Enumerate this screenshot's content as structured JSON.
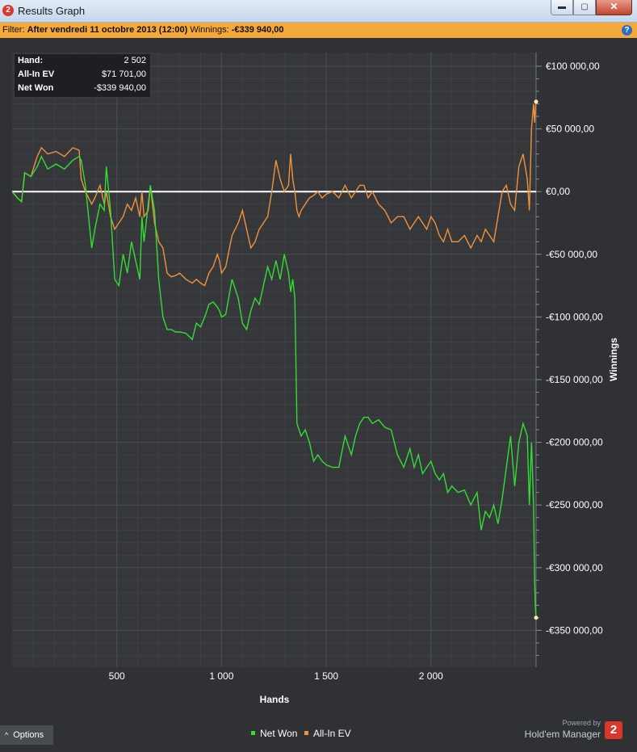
{
  "window": {
    "title": "Results Graph",
    "icon": "hm2-icon",
    "min": "▬",
    "max": "▢",
    "close": "✕"
  },
  "filter": {
    "prefix": "Filter:",
    "text": "After vendredi 11 octobre 2013 (12:00)",
    "winnings_label": "Winnings:",
    "winnings_value": "-€339 940,00",
    "help": "?"
  },
  "tooltip": {
    "rows": [
      {
        "key": "Hand:",
        "value": "2 502"
      },
      {
        "key": "All-In EV",
        "value": "$71 701,00"
      },
      {
        "key": "Net Won",
        "value": "-$339 940,00"
      }
    ]
  },
  "chart_data": {
    "type": "line",
    "xlabel": "Hands",
    "ylabel": "Winnings",
    "xlim": [
      0,
      2502
    ],
    "ylim": [
      -380000,
      100000
    ],
    "x_ticks": [
      500,
      1000,
      1500,
      2000
    ],
    "x_tick_labels": [
      "500",
      "1 000",
      "1 500",
      "2 000"
    ],
    "y_ticks": [
      100000,
      50000,
      0,
      -50000,
      -100000,
      -150000,
      -200000,
      -250000,
      -300000,
      -350000
    ],
    "y_tick_labels": [
      "€100 000,00",
      "€50 000,00",
      "€0,00",
      "-€50 000,00",
      "-€100 000,00",
      "-€150 000,00",
      "-€200 000,00",
      "-€250 000,00",
      "-€300 000,00",
      "-€350 000,00"
    ],
    "grid": true,
    "legend": "bottom-center",
    "series": [
      {
        "name": "Net Won",
        "color": "#33dd33",
        "x": [
          0,
          25,
          45,
          60,
          90,
          120,
          140,
          170,
          210,
          250,
          290,
          320,
          330,
          350,
          380,
          395,
          420,
          440,
          450,
          470,
          490,
          510,
          530,
          550,
          570,
          590,
          610,
          620,
          630,
          650,
          660,
          680,
          700,
          720,
          740,
          760,
          780,
          800,
          830,
          860,
          880,
          900,
          920,
          940,
          960,
          980,
          990,
          1000,
          1020,
          1050,
          1080,
          1100,
          1120,
          1140,
          1160,
          1180,
          1200,
          1220,
          1240,
          1260,
          1280,
          1300,
          1320,
          1330,
          1340,
          1350,
          1360,
          1370,
          1380,
          1400,
          1420,
          1440,
          1460,
          1480,
          1500,
          1530,
          1560,
          1590,
          1620,
          1640,
          1660,
          1680,
          1700,
          1720,
          1750,
          1780,
          1810,
          1840,
          1870,
          1900,
          1920,
          1940,
          1960,
          1980,
          2000,
          2020,
          2040,
          2060,
          2080,
          2100,
          2130,
          2160,
          2190,
          2220,
          2240,
          2260,
          2280,
          2300,
          2320,
          2340,
          2360,
          2380,
          2400,
          2420,
          2440,
          2460,
          2470,
          2480,
          2490,
          2495,
          2498,
          2502
        ],
        "y": [
          0,
          -5000,
          -8000,
          15000,
          12000,
          20000,
          28000,
          18000,
          22000,
          18000,
          25000,
          28000,
          25000,
          5000,
          -45000,
          -30000,
          -10000,
          -15000,
          20000,
          -15000,
          -70000,
          -75000,
          -50000,
          -65000,
          -40000,
          -55000,
          -70000,
          -20000,
          -40000,
          -10000,
          5000,
          -15000,
          -70000,
          -100000,
          -110000,
          -110000,
          -112000,
          -112000,
          -113000,
          -118000,
          -105000,
          -108000,
          -100000,
          -90000,
          -88000,
          -92000,
          -95000,
          -100000,
          -98000,
          -70000,
          -85000,
          -105000,
          -110000,
          -95000,
          -85000,
          -90000,
          -75000,
          -60000,
          -70000,
          -55000,
          -70000,
          -50000,
          -65000,
          -80000,
          -70000,
          -85000,
          -185000,
          -190000,
          -195000,
          -190000,
          -200000,
          -215000,
          -210000,
          -215000,
          -218000,
          -220000,
          -220000,
          -195000,
          -210000,
          -195000,
          -185000,
          -180000,
          -180000,
          -185000,
          -182000,
          -188000,
          -190000,
          -210000,
          -220000,
          -205000,
          -220000,
          -210000,
          -225000,
          -220000,
          -215000,
          -225000,
          -230000,
          -225000,
          -240000,
          -235000,
          -240000,
          -238000,
          -250000,
          -240000,
          -270000,
          -255000,
          -260000,
          -250000,
          -265000,
          -245000,
          -220000,
          -195000,
          -235000,
          -200000,
          -185000,
          -195000,
          -250000,
          -200000,
          -250000,
          -310000,
          -330000,
          -339940
        ]
      },
      {
        "name": "All-In EV",
        "color": "#f0923a",
        "x": [
          0,
          25,
          45,
          60,
          90,
          120,
          140,
          170,
          210,
          250,
          290,
          320,
          330,
          350,
          380,
          395,
          420,
          440,
          450,
          470,
          490,
          510,
          530,
          550,
          570,
          590,
          610,
          620,
          630,
          650,
          660,
          680,
          700,
          720,
          740,
          760,
          780,
          800,
          830,
          860,
          880,
          900,
          920,
          940,
          960,
          980,
          990,
          1000,
          1020,
          1050,
          1080,
          1100,
          1120,
          1140,
          1160,
          1180,
          1200,
          1220,
          1240,
          1260,
          1280,
          1300,
          1320,
          1330,
          1340,
          1350,
          1360,
          1370,
          1380,
          1400,
          1420,
          1440,
          1460,
          1480,
          1500,
          1530,
          1560,
          1590,
          1620,
          1640,
          1660,
          1680,
          1700,
          1720,
          1750,
          1780,
          1810,
          1840,
          1870,
          1900,
          1920,
          1940,
          1960,
          1980,
          2000,
          2020,
          2040,
          2060,
          2080,
          2100,
          2130,
          2160,
          2190,
          2220,
          2240,
          2260,
          2280,
          2300,
          2320,
          2340,
          2360,
          2380,
          2400,
          2420,
          2440,
          2460,
          2470,
          2480,
          2490,
          2495,
          2498,
          2502
        ],
        "y": [
          0,
          -5000,
          -8000,
          15000,
          12000,
          28000,
          35000,
          30000,
          32000,
          28000,
          35000,
          33000,
          10000,
          0,
          -10000,
          -5000,
          5000,
          -10000,
          0,
          -20000,
          -30000,
          -25000,
          -20000,
          -10000,
          -15000,
          -5000,
          -20000,
          0,
          -20000,
          -15000,
          5000,
          -25000,
          -40000,
          -45000,
          -65000,
          -68000,
          -67000,
          -65000,
          -70000,
          -73000,
          -70000,
          -73000,
          -75000,
          -65000,
          -60000,
          -50000,
          -55000,
          -65000,
          -60000,
          -35000,
          -25000,
          -15000,
          -30000,
          -45000,
          -40000,
          -30000,
          -25000,
          -20000,
          0,
          25000,
          10000,
          0,
          5000,
          30000,
          10000,
          0,
          -15000,
          -20000,
          -15000,
          -10000,
          -5000,
          -3000,
          0,
          -5000,
          -2000,
          0,
          -5000,
          5000,
          -5000,
          0,
          5000,
          5000,
          -5000,
          0,
          -10000,
          -15000,
          -25000,
          -20000,
          -20000,
          -30000,
          -25000,
          -20000,
          -25000,
          -30000,
          -20000,
          -25000,
          -35000,
          -40000,
          -30000,
          -40000,
          -40000,
          -35000,
          -45000,
          -35000,
          -40000,
          -30000,
          -35000,
          -40000,
          -20000,
          0,
          5000,
          -10000,
          -15000,
          20000,
          30000,
          10000,
          -15000,
          50000,
          70000,
          55000,
          65000,
          71701
        ]
      }
    ]
  },
  "options_label": "Options",
  "brand": {
    "powered": "Powered by",
    "name": "Hold'em Manager",
    "logo": "2"
  }
}
